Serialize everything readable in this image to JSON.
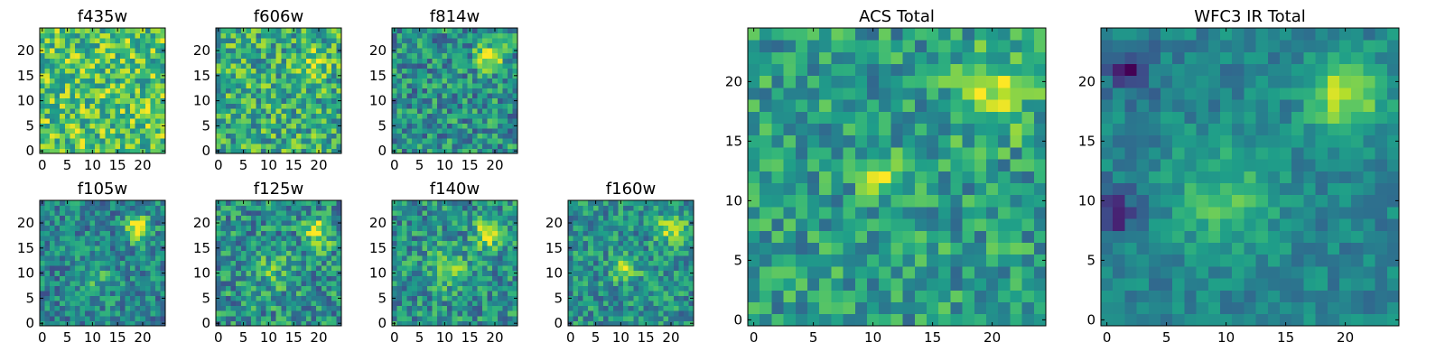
{
  "chart_data": [
    {
      "id": "f435w",
      "type": "heatmap",
      "title": "f435w",
      "grid": false,
      "colormap": "viridis",
      "x_range": [
        0,
        24
      ],
      "y_range": [
        0,
        24
      ],
      "x_ticks": [
        0,
        5,
        10,
        15,
        20
      ],
      "y_ticks": [
        0,
        5,
        10,
        15,
        20
      ],
      "features": [],
      "background": 0.72,
      "noise": 0.28,
      "seed": 11
    },
    {
      "id": "f606w",
      "type": "heatmap",
      "title": "f606w",
      "grid": false,
      "colormap": "viridis",
      "x_range": [
        0,
        24
      ],
      "y_range": [
        0,
        24
      ],
      "x_ticks": [
        0,
        5,
        10,
        15,
        20
      ],
      "y_ticks": [
        0,
        5,
        10,
        15,
        20
      ],
      "features": [
        {
          "x": 19,
          "y": 18,
          "amp": 0.25,
          "sigma": 2.0
        }
      ],
      "background": 0.62,
      "noise": 0.28,
      "seed": 23
    },
    {
      "id": "f814w",
      "type": "heatmap",
      "title": "f814w",
      "grid": false,
      "colormap": "viridis",
      "x_range": [
        0,
        24
      ],
      "y_range": [
        0,
        24
      ],
      "x_ticks": [
        0,
        5,
        10,
        15,
        20
      ],
      "y_ticks": [
        0,
        5,
        10,
        15,
        20
      ],
      "features": [
        {
          "x": 19,
          "y": 19,
          "amp": 0.42,
          "sigma": 1.9
        }
      ],
      "background": 0.5,
      "noise": 0.26,
      "seed": 37
    },
    {
      "id": "f105w",
      "type": "heatmap",
      "title": "f105w",
      "grid": false,
      "colormap": "viridis",
      "x_range": [
        0,
        24
      ],
      "y_range": [
        0,
        24
      ],
      "x_ticks": [
        0,
        5,
        10,
        15,
        20
      ],
      "y_ticks": [
        0,
        5,
        10,
        15,
        20
      ],
      "features": [
        {
          "x": 19,
          "y": 19,
          "amp": 0.5,
          "sigma": 1.8
        },
        {
          "x": 11,
          "y": 9,
          "amp": 0.15,
          "sigma": 3.0
        }
      ],
      "background": 0.45,
      "noise": 0.22,
      "seed": 41
    },
    {
      "id": "f125w",
      "type": "heatmap",
      "title": "f125w",
      "grid": false,
      "colormap": "viridis",
      "x_range": [
        0,
        24
      ],
      "y_range": [
        0,
        24
      ],
      "x_ticks": [
        0,
        5,
        10,
        15,
        20
      ],
      "y_ticks": [
        0,
        5,
        10,
        15,
        20
      ],
      "features": [
        {
          "x": 20,
          "y": 18,
          "amp": 0.4,
          "sigma": 2.0
        },
        {
          "x": 11,
          "y": 10,
          "amp": 0.15,
          "sigma": 3.0
        }
      ],
      "background": 0.5,
      "noise": 0.26,
      "seed": 53
    },
    {
      "id": "f140w",
      "type": "heatmap",
      "title": "f140w",
      "grid": false,
      "colormap": "viridis",
      "x_range": [
        0,
        24
      ],
      "y_range": [
        0,
        24
      ],
      "x_ticks": [
        0,
        5,
        10,
        15,
        20
      ],
      "y_ticks": [
        0,
        5,
        10,
        15,
        20
      ],
      "features": [
        {
          "x": 19,
          "y": 18,
          "amp": 0.42,
          "sigma": 2.1
        },
        {
          "x": 11,
          "y": 11,
          "amp": 0.22,
          "sigma": 2.8
        }
      ],
      "background": 0.5,
      "noise": 0.24,
      "seed": 67
    },
    {
      "id": "f160w",
      "type": "heatmap",
      "title": "f160w",
      "grid": false,
      "colormap": "viridis",
      "x_range": [
        0,
        24
      ],
      "y_range": [
        0,
        24
      ],
      "x_ticks": [
        0,
        5,
        10,
        15,
        20
      ],
      "y_ticks": [
        0,
        5,
        10,
        15,
        20
      ],
      "features": [
        {
          "x": 20,
          "y": 19,
          "amp": 0.4,
          "sigma": 2.0
        },
        {
          "x": 11,
          "y": 11,
          "amp": 0.3,
          "sigma": 2.0
        }
      ],
      "background": 0.5,
      "noise": 0.22,
      "seed": 79
    },
    {
      "id": "acs_total",
      "type": "heatmap",
      "title": "ACS Total",
      "grid": false,
      "colormap": "viridis",
      "x_range": [
        0,
        24
      ],
      "y_range": [
        0,
        24
      ],
      "x_ticks": [
        0,
        5,
        10,
        15,
        20
      ],
      "y_ticks": [
        0,
        5,
        10,
        15,
        20
      ],
      "features": [
        {
          "x": 20,
          "y": 19,
          "amp": 0.35,
          "sigma": 2.3
        },
        {
          "x": 11,
          "y": 12,
          "amp": 0.3,
          "sigma": 1.3
        }
      ],
      "background": 0.55,
      "noise": 0.22,
      "seed": 97
    },
    {
      "id": "wfc3_ir_total",
      "type": "heatmap",
      "title": "WFC3 IR Total",
      "grid": false,
      "colormap": "viridis",
      "x_range": [
        0,
        24
      ],
      "y_range": [
        0,
        24
      ],
      "x_ticks": [
        0,
        5,
        10,
        15,
        20
      ],
      "y_ticks": [
        0,
        5,
        10,
        15,
        20
      ],
      "features": [
        {
          "x": 20,
          "y": 19,
          "amp": 0.45,
          "sigma": 2.2
        },
        {
          "x": 10,
          "y": 10,
          "amp": 0.25,
          "sigma": 3.2
        },
        {
          "x": 2,
          "y": 21,
          "amp": -0.35,
          "sigma": 1.3
        },
        {
          "x": 1,
          "y": 9,
          "amp": -0.3,
          "sigma": 1.5
        }
      ],
      "background": 0.45,
      "noise": 0.12,
      "seed": 113
    }
  ]
}
